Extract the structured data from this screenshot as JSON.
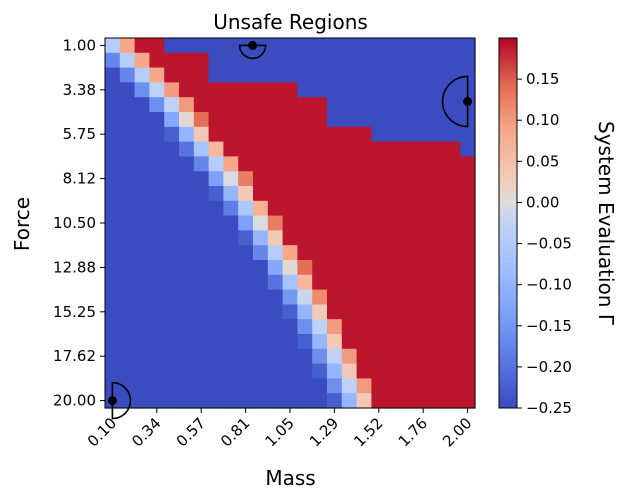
{
  "chart_data": {
    "type": "heatmap",
    "title": "Unsafe Regions",
    "xlabel": "Mass",
    "ylabel": "Force",
    "colorbar_label": "System Evaluation Γ",
    "x_ticks": [
      "0.10",
      "0.34",
      "0.57",
      "0.81",
      "1.05",
      "1.29",
      "1.52",
      "1.76",
      "2.00"
    ],
    "y_ticks": [
      "1.00",
      "3.38",
      "5.75",
      "8.12",
      "10.50",
      "12.88",
      "15.25",
      "17.62",
      "20.00"
    ],
    "x_range": [
      0.1,
      2.0
    ],
    "y_range": [
      1.0,
      20.0
    ],
    "colorbar_range": [
      -0.25,
      0.2
    ],
    "colorbar_ticks": [
      "0.15",
      "0.10",
      "0.05",
      "0.00",
      "−0.05",
      "−0.10",
      "−0.15",
      "−0.20",
      "−0.25"
    ],
    "colormap": "coolwarm",
    "grid": {
      "cols": 25,
      "rows": 25,
      "base_row_boundary": [
        1.6,
        2.6,
        3.6,
        4.5,
        5.5,
        6.2,
        7.0,
        7.8,
        8.6,
        9.3,
        10.0,
        10.7,
        11.3,
        12.0,
        12.6,
        13.2,
        13.8,
        14.4,
        15.0,
        15.5,
        16.0,
        16.5,
        17.0,
        17.5,
        18.0
      ],
      "near_boundary_value": 0.1,
      "decay": 0.13,
      "saturated_value": 0.19,
      "blue_value": -0.25,
      "blue_region": [
        {
          "row": 0,
          "from_col": 4
        },
        {
          "row": 1,
          "from_col": 7
        },
        {
          "row": 2,
          "from_col": 7
        },
        {
          "row": 3,
          "from_col": 13
        },
        {
          "row": 4,
          "from_col": 15
        },
        {
          "row": 5,
          "from_col": 15
        },
        {
          "row": 6,
          "from_col": 18
        },
        {
          "row": 7,
          "from_col": 24
        }
      ]
    },
    "markers": [
      {
        "x": 0.1,
        "y": 20.0,
        "half_disc": "right"
      },
      {
        "x": 0.85,
        "y": 1.0,
        "half_disc": "down"
      },
      {
        "x": 2.0,
        "y": 4.0,
        "half_disc": "left"
      }
    ]
  },
  "colors": {
    "coolwarm_low": "#3b4cc0",
    "coolwarm_mid": "#dddddd",
    "coolwarm_high": "#b40426"
  }
}
